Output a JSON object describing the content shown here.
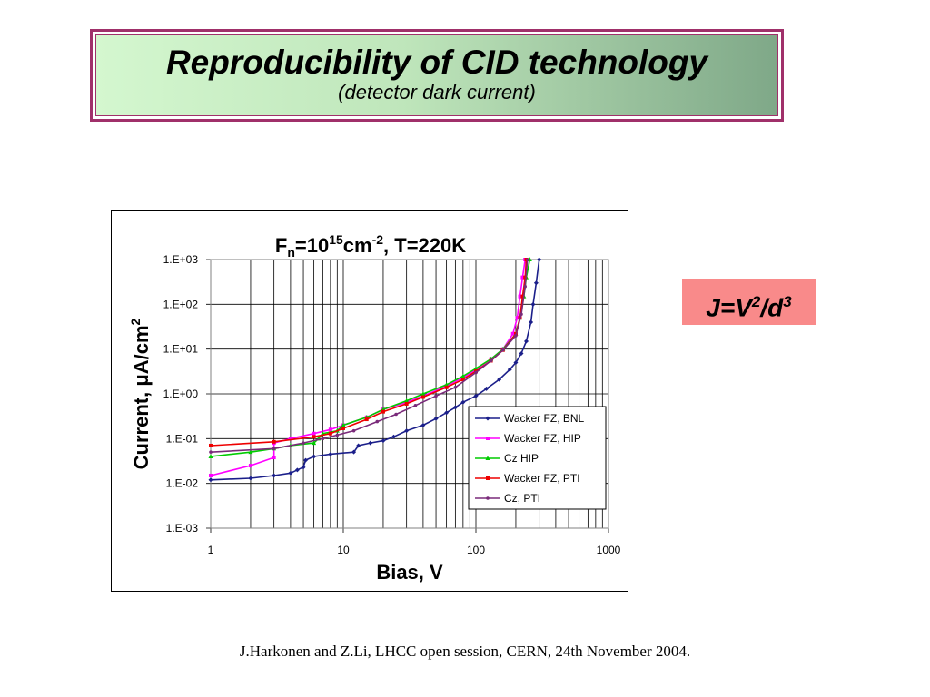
{
  "slide": {
    "title": "Reproducibility of CID technology",
    "subtitle": "(detector dark current)",
    "formula": {
      "j": "J=V",
      "exp1": "2",
      "mid": "/d",
      "exp2": "3"
    },
    "credit": "J.Harkonen and Z.Li, LHCC open session, CERN, 24th November 2004."
  },
  "chart_data": {
    "type": "line",
    "title": {
      "pre": "F",
      "sub": "n",
      "mid": "=10",
      "sup1": "15",
      "unit": "cm",
      "sup2": "-2",
      "post": ", T=220K"
    },
    "xlabel": "Bias, V",
    "ylabel": {
      "base": "Current, μA/cm",
      "sup": "2"
    },
    "x_scale": "log",
    "y_scale": "log",
    "xlim": [
      1,
      1000
    ],
    "ylim": [
      0.001,
      1000
    ],
    "x_ticks": [
      {
        "v": 1,
        "label": "1"
      },
      {
        "v": 10,
        "label": "10"
      },
      {
        "v": 100,
        "label": "100"
      },
      {
        "v": 1000,
        "label": "1000"
      }
    ],
    "y_ticks": [
      {
        "v": 0.001,
        "label": "1.E-03"
      },
      {
        "v": 0.01,
        "label": "1.E-02"
      },
      {
        "v": 0.1,
        "label": "1.E-01"
      },
      {
        "v": 1,
        "label": "1.E+00"
      },
      {
        "v": 10,
        "label": "1.E+01"
      },
      {
        "v": 100,
        "label": "1.E+02"
      },
      {
        "v": 1000,
        "label": "1.E+03"
      }
    ],
    "grid": "vertical minor and horizontal major",
    "legend_position": "lower-right",
    "series": [
      {
        "name": "Wacker FZ, BNL",
        "color": "#1b1f8a",
        "marker": "diamond",
        "points": [
          [
            1,
            0.012
          ],
          [
            2,
            0.013
          ],
          [
            3,
            0.015
          ],
          [
            4,
            0.017
          ],
          [
            4.5,
            0.02
          ],
          [
            5,
            0.023
          ],
          [
            5.2,
            0.033
          ],
          [
            6,
            0.04
          ],
          [
            8,
            0.045
          ],
          [
            12,
            0.05
          ],
          [
            13,
            0.07
          ],
          [
            16,
            0.08
          ],
          [
            20,
            0.09
          ],
          [
            24,
            0.11
          ],
          [
            30,
            0.15
          ],
          [
            40,
            0.2
          ],
          [
            50,
            0.28
          ],
          [
            60,
            0.38
          ],
          [
            70,
            0.5
          ],
          [
            80,
            0.65
          ],
          [
            100,
            0.9
          ],
          [
            120,
            1.3
          ],
          [
            150,
            2.1
          ],
          [
            180,
            3.5
          ],
          [
            200,
            5
          ],
          [
            220,
            8
          ],
          [
            240,
            15
          ],
          [
            260,
            40
          ],
          [
            270,
            100
          ],
          [
            285,
            300
          ],
          [
            300,
            1000
          ]
        ]
      },
      {
        "name": "Wacker FZ, HIP",
        "color": "#ff00ff",
        "marker": "square",
        "points": [
          [
            1,
            0.015
          ],
          [
            2,
            0.025
          ],
          [
            3,
            0.038
          ],
          [
            3,
            0.08
          ],
          [
            4,
            0.1
          ],
          [
            6,
            0.13
          ],
          [
            8,
            0.16
          ],
          [
            10,
            0.2
          ],
          [
            15,
            0.3
          ],
          [
            20,
            0.45
          ],
          [
            30,
            0.65
          ],
          [
            40,
            0.9
          ],
          [
            60,
            1.5
          ],
          [
            80,
            2.3
          ],
          [
            100,
            3.5
          ],
          [
            130,
            6
          ],
          [
            160,
            10
          ],
          [
            190,
            22
          ],
          [
            205,
            50
          ],
          [
            215,
            150
          ],
          [
            225,
            400
          ],
          [
            235,
            1000
          ]
        ]
      },
      {
        "name": "Cz HIP",
        "color": "#00cc00",
        "marker": "triangle",
        "points": [
          [
            1,
            0.04
          ],
          [
            2,
            0.05
          ],
          [
            3,
            0.06
          ],
          [
            4,
            0.07
          ],
          [
            6,
            0.08
          ],
          [
            6.5,
            0.1
          ],
          [
            7,
            0.13
          ],
          [
            9,
            0.15
          ],
          [
            10,
            0.2
          ],
          [
            15,
            0.3
          ],
          [
            20,
            0.45
          ],
          [
            30,
            0.7
          ],
          [
            40,
            1
          ],
          [
            60,
            1.6
          ],
          [
            80,
            2.5
          ],
          [
            100,
            3.7
          ],
          [
            130,
            6
          ],
          [
            160,
            10
          ],
          [
            200,
            22
          ],
          [
            215,
            50
          ],
          [
            230,
            150
          ],
          [
            240,
            400
          ],
          [
            255,
            1000
          ]
        ]
      },
      {
        "name": "Wacker FZ, PTI",
        "color": "#ee0000",
        "marker": "square",
        "points": [
          [
            1,
            0.07
          ],
          [
            3,
            0.085
          ],
          [
            6,
            0.11
          ],
          [
            8,
            0.13
          ],
          [
            10,
            0.17
          ],
          [
            15,
            0.27
          ],
          [
            20,
            0.4
          ],
          [
            30,
            0.6
          ],
          [
            40,
            0.85
          ],
          [
            60,
            1.4
          ],
          [
            80,
            2.1
          ],
          [
            100,
            3.2
          ],
          [
            130,
            5.5
          ],
          [
            160,
            9.5
          ],
          [
            200,
            22
          ],
          [
            215,
            50
          ],
          [
            225,
            150
          ],
          [
            235,
            400
          ],
          [
            240,
            1000
          ]
        ]
      },
      {
        "name": "Cz, PTI",
        "color": "#7a2a7a",
        "marker": "dot",
        "points": [
          [
            1,
            0.05
          ],
          [
            3,
            0.06
          ],
          [
            5,
            0.08
          ],
          [
            7,
            0.1
          ],
          [
            9,
            0.12
          ],
          [
            12,
            0.15
          ],
          [
            18,
            0.24
          ],
          [
            25,
            0.35
          ],
          [
            35,
            0.55
          ],
          [
            50,
            0.9
          ],
          [
            70,
            1.4
          ],
          [
            100,
            3
          ],
          [
            130,
            5.5
          ],
          [
            160,
            9.5
          ],
          [
            200,
            20
          ],
          [
            220,
            60
          ],
          [
            235,
            250
          ],
          [
            245,
            1000
          ]
        ]
      }
    ]
  }
}
